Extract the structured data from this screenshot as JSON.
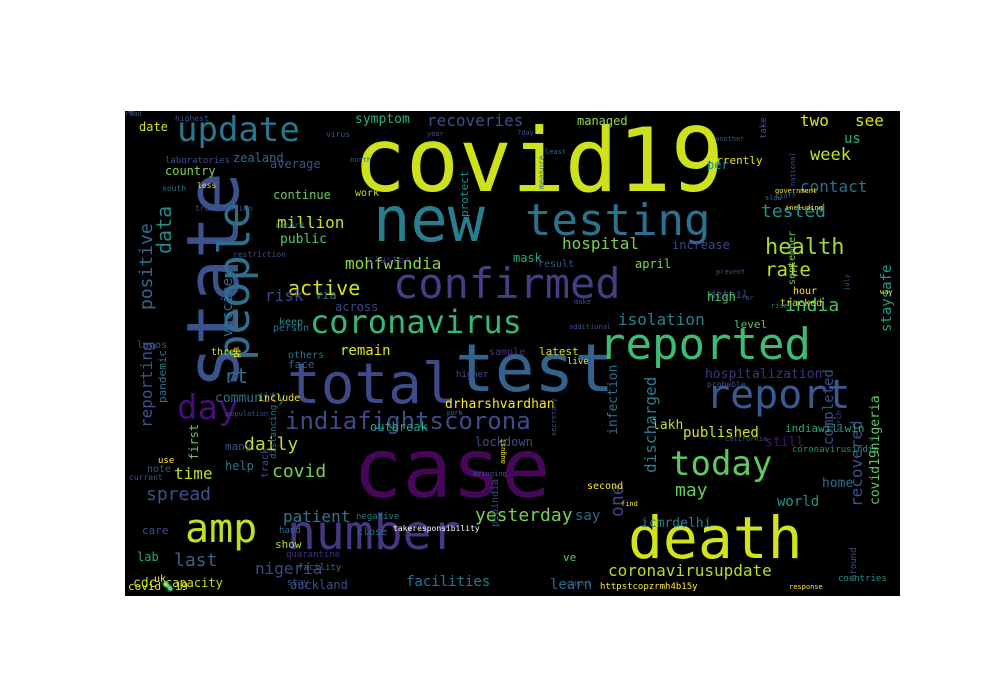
{
  "colors": {
    "canvas_background": "#000000",
    "page_background": "#ffffff",
    "palette": [
      "#fde725",
      "#bddf26",
      "#7ad151",
      "#44bf70",
      "#22a884",
      "#21918c",
      "#2a788e",
      "#355f8d",
      "#414487",
      "#482475",
      "#440154"
    ]
  },
  "words": [
    {
      "text": "covid19",
      "size": 88,
      "color": "#cde11d",
      "orient": "h"
    },
    {
      "text": "case",
      "size": 82,
      "color": "#46075a",
      "orient": "h"
    },
    {
      "text": "state",
      "size": 72,
      "color": "#3b528b",
      "orient": "v"
    },
    {
      "text": "new",
      "size": 62,
      "color": "#287d8e",
      "orient": "h"
    },
    {
      "text": "test",
      "size": 66,
      "color": "#33638d",
      "orient": "h"
    },
    {
      "text": "total",
      "size": 56,
      "color": "#3e4a89",
      "orient": "h"
    },
    {
      "text": "number",
      "size": 48,
      "color": "#453781",
      "orient": "h"
    },
    {
      "text": "death",
      "size": 58,
      "color": "#d2e21b",
      "orient": "h"
    },
    {
      "text": "testing",
      "size": 44,
      "color": "#2c718e",
      "orient": "h"
    },
    {
      "text": "people",
      "size": 44,
      "color": "#2e6e8e",
      "orient": "v"
    },
    {
      "text": "confirmed",
      "size": 42,
      "color": "#433e85",
      "orient": "h"
    },
    {
      "text": "reported",
      "size": 44,
      "color": "#3dbc74",
      "orient": "h"
    },
    {
      "text": "report",
      "size": 40,
      "color": "#375b8d",
      "orient": "h"
    },
    {
      "text": "amp",
      "size": 40,
      "color": "#c2df23",
      "orient": "h"
    },
    {
      "text": "update",
      "size": 34,
      "color": "#2a768e",
      "orient": "h"
    },
    {
      "text": "coronavirus",
      "size": 32,
      "color": "#35b779",
      "orient": "h"
    },
    {
      "text": "day",
      "size": 34,
      "color": "#440f76",
      "orient": "h"
    },
    {
      "text": "today",
      "size": 34,
      "color": "#5ec962",
      "orient": "h"
    },
    {
      "text": "indiafightscorona",
      "size": 24,
      "color": "#3e4c8a",
      "orient": "h"
    },
    {
      "text": "health",
      "size": 22,
      "color": "#9fda3a",
      "orient": "h"
    },
    {
      "text": "data",
      "size": 20,
      "color": "#238a8d",
      "orient": "v"
    },
    {
      "text": "week",
      "size": 17,
      "color": "#c8e020",
      "orient": "h"
    },
    {
      "text": "tested",
      "size": 18,
      "color": "#21918c",
      "orient": "h"
    },
    {
      "text": "contact",
      "size": 16,
      "color": "#2d708e",
      "orient": "h"
    },
    {
      "text": "rate",
      "size": 19,
      "color": "#bddf26",
      "orient": "h"
    },
    {
      "text": "india",
      "size": 18,
      "color": "#4ac16d",
      "orient": "h"
    },
    {
      "text": "two",
      "size": 16,
      "color": "#e5e419",
      "orient": "h"
    },
    {
      "text": "see",
      "size": 16,
      "color": "#dde318",
      "orient": "h"
    },
    {
      "text": "recoveries",
      "size": 16,
      "color": "#3b528b",
      "orient": "h"
    },
    {
      "text": "symptom",
      "size": 13,
      "color": "#2ab07f",
      "orient": "h"
    },
    {
      "text": "managed",
      "size": 12,
      "color": "#93d741",
      "orient": "h"
    },
    {
      "text": "active",
      "size": 20,
      "color": "#d8e219",
      "orient": "h"
    },
    {
      "text": "mohfwindia",
      "size": 16,
      "color": "#8bd646",
      "orient": "h"
    },
    {
      "text": "hospital",
      "size": 16,
      "color": "#7ad151",
      "orient": "h"
    },
    {
      "text": "million",
      "size": 16,
      "color": "#cae11f",
      "orient": "h"
    },
    {
      "text": "public",
      "size": 13,
      "color": "#52c569",
      "orient": "h"
    },
    {
      "text": "isolation",
      "size": 16,
      "color": "#26818e",
      "orient": "h"
    },
    {
      "text": "staysafe",
      "size": 14,
      "color": "#1f9e89",
      "orient": "v"
    },
    {
      "text": "positive",
      "size": 18,
      "color": "#306a8e",
      "orient": "v"
    },
    {
      "text": "vaccine",
      "size": 14,
      "color": "#306a8e",
      "orient": "v"
    },
    {
      "text": "rt",
      "size": 20,
      "color": "#2d708e",
      "orient": "h"
    },
    {
      "text": "risk",
      "size": 16,
      "color": "#3f4788",
      "orient": "h"
    },
    {
      "text": "remain",
      "size": 14,
      "color": "#e2e418",
      "orient": "h"
    },
    {
      "text": "reporting",
      "size": 16,
      "color": "#3b528b",
      "orient": "v"
    },
    {
      "text": "community",
      "size": 13,
      "color": "#2c718e",
      "orient": "h"
    },
    {
      "text": "hospitalization",
      "size": 13,
      "color": "#46337e",
      "orient": "h"
    },
    {
      "text": "drharshvardhan",
      "size": 13,
      "color": "#fde725",
      "orient": "h"
    },
    {
      "text": "lakh",
      "size": 13,
      "color": "#bddf26",
      "orient": "h"
    },
    {
      "text": "infection",
      "size": 13,
      "color": "#2c718e",
      "orient": "v"
    },
    {
      "text": "discharged",
      "size": 16,
      "color": "#287d8e",
      "orient": "v"
    },
    {
      "text": "daily",
      "size": 18,
      "color": "#c0df25",
      "orient": "h"
    },
    {
      "text": "covid",
      "size": 18,
      "color": "#7ad151",
      "orient": "h"
    },
    {
      "text": "spread",
      "size": 18,
      "color": "#3b528b",
      "orient": "h"
    },
    {
      "text": "time",
      "size": 16,
      "color": "#bddf26",
      "orient": "h"
    },
    {
      "text": "patient",
      "size": 16,
      "color": "#2a788e",
      "orient": "h"
    },
    {
      "text": "yesterday",
      "size": 18,
      "color": "#7ad151",
      "orient": "h"
    },
    {
      "text": "published",
      "size": 14,
      "color": "#d8e219",
      "orient": "h"
    },
    {
      "text": "may",
      "size": 18,
      "color": "#67cc5c",
      "orient": "h"
    },
    {
      "text": "one",
      "size": 18,
      "color": "#404688",
      "orient": "v"
    },
    {
      "text": "recovered",
      "size": 16,
      "color": "#3b528b",
      "orient": "v"
    },
    {
      "text": "covid19nigeria",
      "size": 13,
      "color": "#5ec962",
      "orient": "v"
    },
    {
      "text": "completed",
      "size": 14,
      "color": "#3b528b",
      "orient": "v"
    },
    {
      "text": "world",
      "size": 14,
      "color": "#21918c",
      "orient": "h"
    },
    {
      "text": "home",
      "size": 13,
      "color": "#2c728e",
      "orient": "h"
    },
    {
      "text": "last",
      "size": 18,
      "color": "#33638d",
      "orient": "h"
    },
    {
      "text": "nigeria",
      "size": 16,
      "color": "#3f4889",
      "orient": "h"
    },
    {
      "text": "coronavirusupdate",
      "size": 16,
      "color": "#b5de2b",
      "orient": "h"
    },
    {
      "text": "icmrdelhi",
      "size": 13,
      "color": "#277f8e",
      "orient": "h"
    },
    {
      "text": "say",
      "size": 14,
      "color": "#31688e",
      "orient": "h"
    },
    {
      "text": "still",
      "size": 13,
      "color": "#481769",
      "orient": "h"
    },
    {
      "text": "indiawillwin",
      "size": 11,
      "color": "#22a884",
      "orient": "h"
    },
    {
      "text": "facilities",
      "size": 14,
      "color": "#2a788e",
      "orient": "h"
    },
    {
      "text": "learn",
      "size": 14,
      "color": "#2e6e8e",
      "orient": "h"
    },
    {
      "text": "capacity",
      "size": 12,
      "color": "#c2df23",
      "orient": "h"
    },
    {
      "text": "cdc",
      "size": 13,
      "color": "#bddf26",
      "orient": "h"
    },
    {
      "text": "auckland",
      "size": 12,
      "color": "#3b528b",
      "orient": "h"
    },
    {
      "text": "country",
      "size": 12,
      "color": "#86d549",
      "orient": "h"
    },
    {
      "text": "zealand",
      "size": 12,
      "color": "#2e6e8e",
      "orient": "h"
    },
    {
      "text": "date",
      "size": 12,
      "color": "#d2e21b",
      "orient": "h"
    },
    {
      "text": "continue",
      "size": 12,
      "color": "#6ccd5a",
      "orient": "h"
    },
    {
      "text": "average",
      "size": 12,
      "color": "#3b528b",
      "orient": "h"
    },
    {
      "text": "mask",
      "size": 12,
      "color": "#22a785",
      "orient": "h"
    },
    {
      "text": "lockdown",
      "size": 12,
      "color": "#3b528b",
      "orient": "h"
    },
    {
      "text": "outbreak",
      "size": 12,
      "color": "#22a884",
      "orient": "h"
    },
    {
      "text": "latest",
      "size": 11,
      "color": "#dde318",
      "orient": "h"
    },
    {
      "text": "detail",
      "size": 11,
      "color": "#3e4a89",
      "orient": "h"
    },
    {
      "text": "high",
      "size": 12,
      "color": "#52c569",
      "orient": "h"
    },
    {
      "text": "us",
      "size": 14,
      "color": "#29af7f",
      "orient": "h"
    },
    {
      "text": "increase",
      "size": 12,
      "color": "#3f4788",
      "orient": "h"
    },
    {
      "text": "april",
      "size": 12,
      "color": "#81d34d",
      "orient": "h"
    },
    {
      "text": "via",
      "size": 12,
      "color": "#2c728e",
      "orient": "h"
    },
    {
      "text": "across",
      "size": 12,
      "color": "#404588",
      "orient": "h"
    },
    {
      "text": "currently",
      "size": 11,
      "color": "#e7e419",
      "orient": "h"
    },
    {
      "text": "per",
      "size": 12,
      "color": "#21918c",
      "orient": "h"
    },
    {
      "text": "show",
      "size": 11,
      "color": "#a8db34",
      "orient": "h"
    },
    {
      "text": "first",
      "size": 12,
      "color": "#5ec962",
      "orient": "v"
    },
    {
      "text": "three",
      "size": 10,
      "color": "#cde11d",
      "orient": "h"
    },
    {
      "text": "face",
      "size": 11,
      "color": "#33638d",
      "orient": "h"
    },
    {
      "text": "include",
      "size": 10,
      "color": "#fde725",
      "orient": "h"
    },
    {
      "text": "lagos",
      "size": 10,
      "color": "#3b528b",
      "orient": "h"
    },
    {
      "text": "pandemic",
      "size": 11,
      "color": "#2c728e",
      "orient": "v"
    },
    {
      "text": "protect",
      "size": 11,
      "color": "#21918c",
      "orient": "v"
    },
    {
      "text": "covid🦠19",
      "size": 11,
      "color": "#e2e418",
      "orient": "h"
    },
    {
      "text": "pibindia",
      "size": 10,
      "color": "#3e4989",
      "orient": "v"
    },
    {
      "text": "httpstcopzrmh4b15y",
      "size": 9,
      "color": "#fde725",
      "orient": "h"
    },
    {
      "text": "coronavirusindia",
      "size": 9,
      "color": "#21918c",
      "orient": "h"
    },
    {
      "text": "september",
      "size": 10,
      "color": "#7ad151",
      "orient": "v"
    },
    {
      "text": "hour",
      "size": 10,
      "color": "#fde725",
      "orient": "h"
    },
    {
      "text": "tracked",
      "size": 10,
      "color": "#d8e219",
      "orient": "h"
    },
    {
      "text": "close",
      "size": 10,
      "color": "#2c728e",
      "orient": "h"
    },
    {
      "text": "takeresponsibility",
      "size": 8,
      "color": "#ffffff",
      "orient": "h"
    },
    {
      "text": "second",
      "size": 10,
      "color": "#fde725",
      "orient": "h"
    },
    {
      "text": "negative",
      "size": 9,
      "color": "#2a788e",
      "orient": "h"
    },
    {
      "text": "hand",
      "size": 9,
      "color": "#31688e",
      "orient": "h"
    },
    {
      "text": "care",
      "size": 11,
      "color": "#3b528b",
      "orient": "h"
    },
    {
      "text": "lab",
      "size": 12,
      "color": "#22a884",
      "orient": "h"
    },
    {
      "text": "help",
      "size": 12,
      "color": "#2c728e",
      "orient": "h"
    },
    {
      "text": "note",
      "size": 10,
      "color": "#3b528b",
      "orient": "h"
    },
    {
      "text": "uk",
      "size": 10,
      "color": "#fde725",
      "orient": "h"
    },
    {
      "text": "many",
      "size": 11,
      "color": "#3b528b",
      "orient": "h"
    },
    {
      "text": "ve",
      "size": 11,
      "color": "#5ec962",
      "orient": "h"
    },
    {
      "text": "level",
      "size": 11,
      "color": "#5ec962",
      "orient": "h"
    },
    {
      "text": "person",
      "size": 10,
      "color": "#2c728e",
      "orient": "h"
    },
    {
      "text": "keep",
      "size": 10,
      "color": "#21918c",
      "orient": "h"
    },
    {
      "text": "work",
      "size": 10,
      "color": "#bddf26",
      "orient": "h"
    },
    {
      "text": "cluster",
      "size": 10,
      "color": "#482475",
      "orient": "h"
    },
    {
      "text": "result",
      "size": 10,
      "color": "#3b528b",
      "orient": "h"
    },
    {
      "text": "others",
      "size": 10,
      "color": "#2c728e",
      "orient": "h"
    },
    {
      "text": "sample",
      "size": 10,
      "color": "#46327e",
      "orient": "h"
    },
    {
      "text": "live",
      "size": 9,
      "color": "#fde725",
      "orient": "h"
    },
    {
      "text": "quarantine",
      "size": 9,
      "color": "#46327e",
      "orient": "h"
    },
    {
      "text": "facility",
      "size": 9,
      "color": "#2c728e",
      "orient": "h"
    },
    {
      "text": "countries",
      "size": 9,
      "color": "#21918c",
      "orient": "h"
    },
    {
      "text": "around",
      "size": 9,
      "color": "#3b528b",
      "orient": "v"
    },
    {
      "text": "distancing",
      "size": 9,
      "color": "#2c728e",
      "orient": "v"
    },
    {
      "text": "track",
      "size": 10,
      "color": "#3b528b",
      "orient": "v"
    },
    {
      "text": "stay",
      "size": 9,
      "color": "#3b528b",
      "orient": "h"
    },
    {
      "text": "current",
      "size": 8,
      "color": "#3b528b",
      "orient": "h"
    },
    {
      "text": "use",
      "size": 9,
      "color": "#fde725",
      "orient": "h"
    },
    {
      "text": "less",
      "size": 8,
      "color": "#fde725",
      "orient": "h"
    },
    {
      "text": "transmission",
      "size": 8,
      "color": "#3b528b",
      "orient": "h"
    },
    {
      "text": "restriction",
      "size": 8,
      "color": "#3b528b",
      "orient": "h"
    },
    {
      "text": "record",
      "size": 8,
      "color": "#2c728e",
      "orient": "h"
    },
    {
      "text": "highest",
      "size": 8,
      "color": "#3b528b",
      "orient": "h"
    },
    {
      "text": "laboratories",
      "size": 9,
      "color": "#3b528b",
      "orient": "h"
    },
    {
      "text": "south",
      "size": 8,
      "color": "#2c728e",
      "orient": "h"
    },
    {
      "text": "disease",
      "size": 8,
      "color": "#3b528b",
      "orient": "v"
    },
    {
      "text": "north",
      "size": 7,
      "color": "#2c728e",
      "orient": "h"
    },
    {
      "text": "virus",
      "size": 8,
      "color": "#3b528b",
      "orient": "h"
    },
    {
      "text": "least",
      "size": 7,
      "color": "#2c728e",
      "orient": "h"
    },
    {
      "text": "measure",
      "size": 8,
      "color": "#2c728e",
      "orient": "v"
    },
    {
      "text": "slow",
      "size": 7,
      "color": "#2c728e",
      "orient": "h"
    },
    {
      "text": "government",
      "size": 7,
      "color": "#fde725",
      "orient": "h"
    },
    {
      "text": "including",
      "size": 7,
      "color": "#fde725",
      "orient": "h"
    },
    {
      "text": "prevent",
      "size": 7,
      "color": "#3b528b",
      "orient": "h"
    },
    {
      "text": "california",
      "size": 7,
      "color": "#3b528b",
      "orient": "h"
    },
    {
      "text": "probable",
      "size": 8,
      "color": "#3b528b",
      "orient": "h"
    },
    {
      "text": "higher",
      "size": 9,
      "color": "#3b528b",
      "orient": "h"
    },
    {
      "text": "york",
      "size": 7,
      "color": "#2c728e",
      "orient": "h"
    },
    {
      "text": "secretary",
      "size": 7,
      "color": "#3b528b",
      "orient": "v"
    },
    {
      "text": "bringing",
      "size": 7,
      "color": "#3b528b",
      "orient": "h"
    },
    {
      "text": "august",
      "size": 7,
      "color": "#fde725",
      "orient": "v"
    },
    {
      "text": "march",
      "size": 7,
      "color": "#3b528b",
      "orient": "v"
    },
    {
      "text": "response",
      "size": 7,
      "color": "#fde725",
      "orient": "h"
    },
    {
      "text": "school",
      "size": 7,
      "color": "#3b528b",
      "orient": "h"
    },
    {
      "text": "find",
      "size": 7,
      "color": "#fde725",
      "orient": "h"
    },
    {
      "text": "make",
      "size": 7,
      "color": "#3b528b",
      "orient": "h"
    },
    {
      "text": "additional",
      "size": 7,
      "color": "#3b528b",
      "orient": "h"
    },
    {
      "text": "rise",
      "size": 7,
      "color": "#2c728e",
      "orient": "h"
    },
    {
      "text": "far",
      "size": 7,
      "color": "#3b528b",
      "orient": "h"
    },
    {
      "text": "way",
      "size": 7,
      "color": "#fde725",
      "orient": "h"
    },
    {
      "text": "july",
      "size": 7,
      "color": "#3b528b",
      "orient": "v"
    },
    {
      "text": "national",
      "size": 7,
      "color": "#3b528b",
      "orient": "v"
    },
    {
      "text": "staff",
      "size": 7,
      "color": "#3b528b",
      "orient": "h"
    },
    {
      "text": "another",
      "size": 7,
      "color": "#3b528b",
      "orient": "h"
    },
    {
      "text": "take",
      "size": 9,
      "color": "#3b528b",
      "orient": "v"
    },
    {
      "text": "pm",
      "size": 9,
      "color": "#fde725",
      "orient": "v"
    },
    {
      "text": "population",
      "size": 7,
      "color": "#3b528b",
      "orient": "h"
    },
    {
      "text": "7day",
      "size": 7,
      "color": "#3b528b",
      "orient": "h"
    },
    {
      "text": "year",
      "size": 7,
      "color": "#3b528b",
      "orient": "h"
    },
    {
      "text": "read",
      "size": 7,
      "color": "#3b528b",
      "orient": "h"
    }
  ]
}
